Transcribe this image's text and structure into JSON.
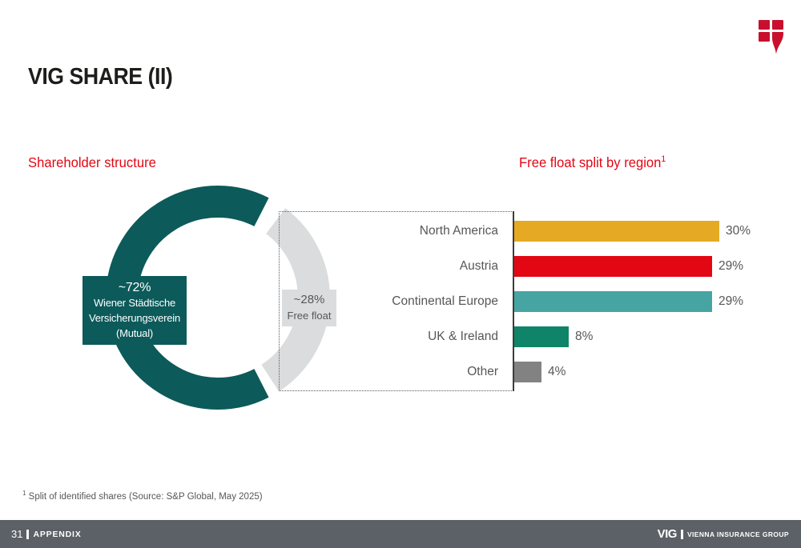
{
  "slide": {
    "title": "VIG SHARE (II)",
    "left_section_title": "Shareholder structure",
    "right_section_title": "Free float split by region",
    "right_section_sup": "1",
    "footnote_sup": "1",
    "footnote_text": " Split of identified shares (Source: S&P Global, May 2025)"
  },
  "chart_data": [
    {
      "type": "pie",
      "donut": true,
      "title": "Shareholder structure",
      "labels": [
        "Wiener Städtische Versicherungsverein (Mutual)",
        "Free float"
      ],
      "values": [
        72,
        28
      ],
      "value_labels": [
        "~72%",
        "~28%"
      ],
      "colors": [
        "#0c5a5a",
        "#dadcdd"
      ],
      "callouts": {
        "majority": [
          "~72%",
          "Wiener Städtische",
          "Versicherungsverein",
          "(Mutual)"
        ],
        "free_float": [
          "~28%",
          "Free float"
        ]
      }
    },
    {
      "type": "bar",
      "orientation": "horizontal",
      "title": "Free float split by region",
      "categories": [
        "North America",
        "Austria",
        "Continental Europe",
        "UK & Ireland",
        "Other"
      ],
      "values": [
        30,
        29,
        29,
        8,
        4
      ],
      "value_labels": [
        "30%",
        "29%",
        "29%",
        "8%",
        "4%"
      ],
      "colors": [
        "#e6a923",
        "#e30613",
        "#46a5a2",
        "#0f8468",
        "#828282"
      ],
      "xlim": [
        0,
        30
      ],
      "grid": false,
      "legend": false
    }
  ],
  "footer": {
    "page_number": "31",
    "section": "APPENDIX",
    "brand": "VIG",
    "brand_suffix": "VIENNA INSURANCE GROUP"
  },
  "icons": {
    "logo": "vig-shield-flame-logo"
  },
  "colors": {
    "accent_red": "#e30613",
    "brand_petrol": "#0c5a5a",
    "logo_red": "#c8102e",
    "footer_gray": "#5b6166",
    "text_gray": "#575756",
    "free_float_gray": "#dadcdd"
  }
}
